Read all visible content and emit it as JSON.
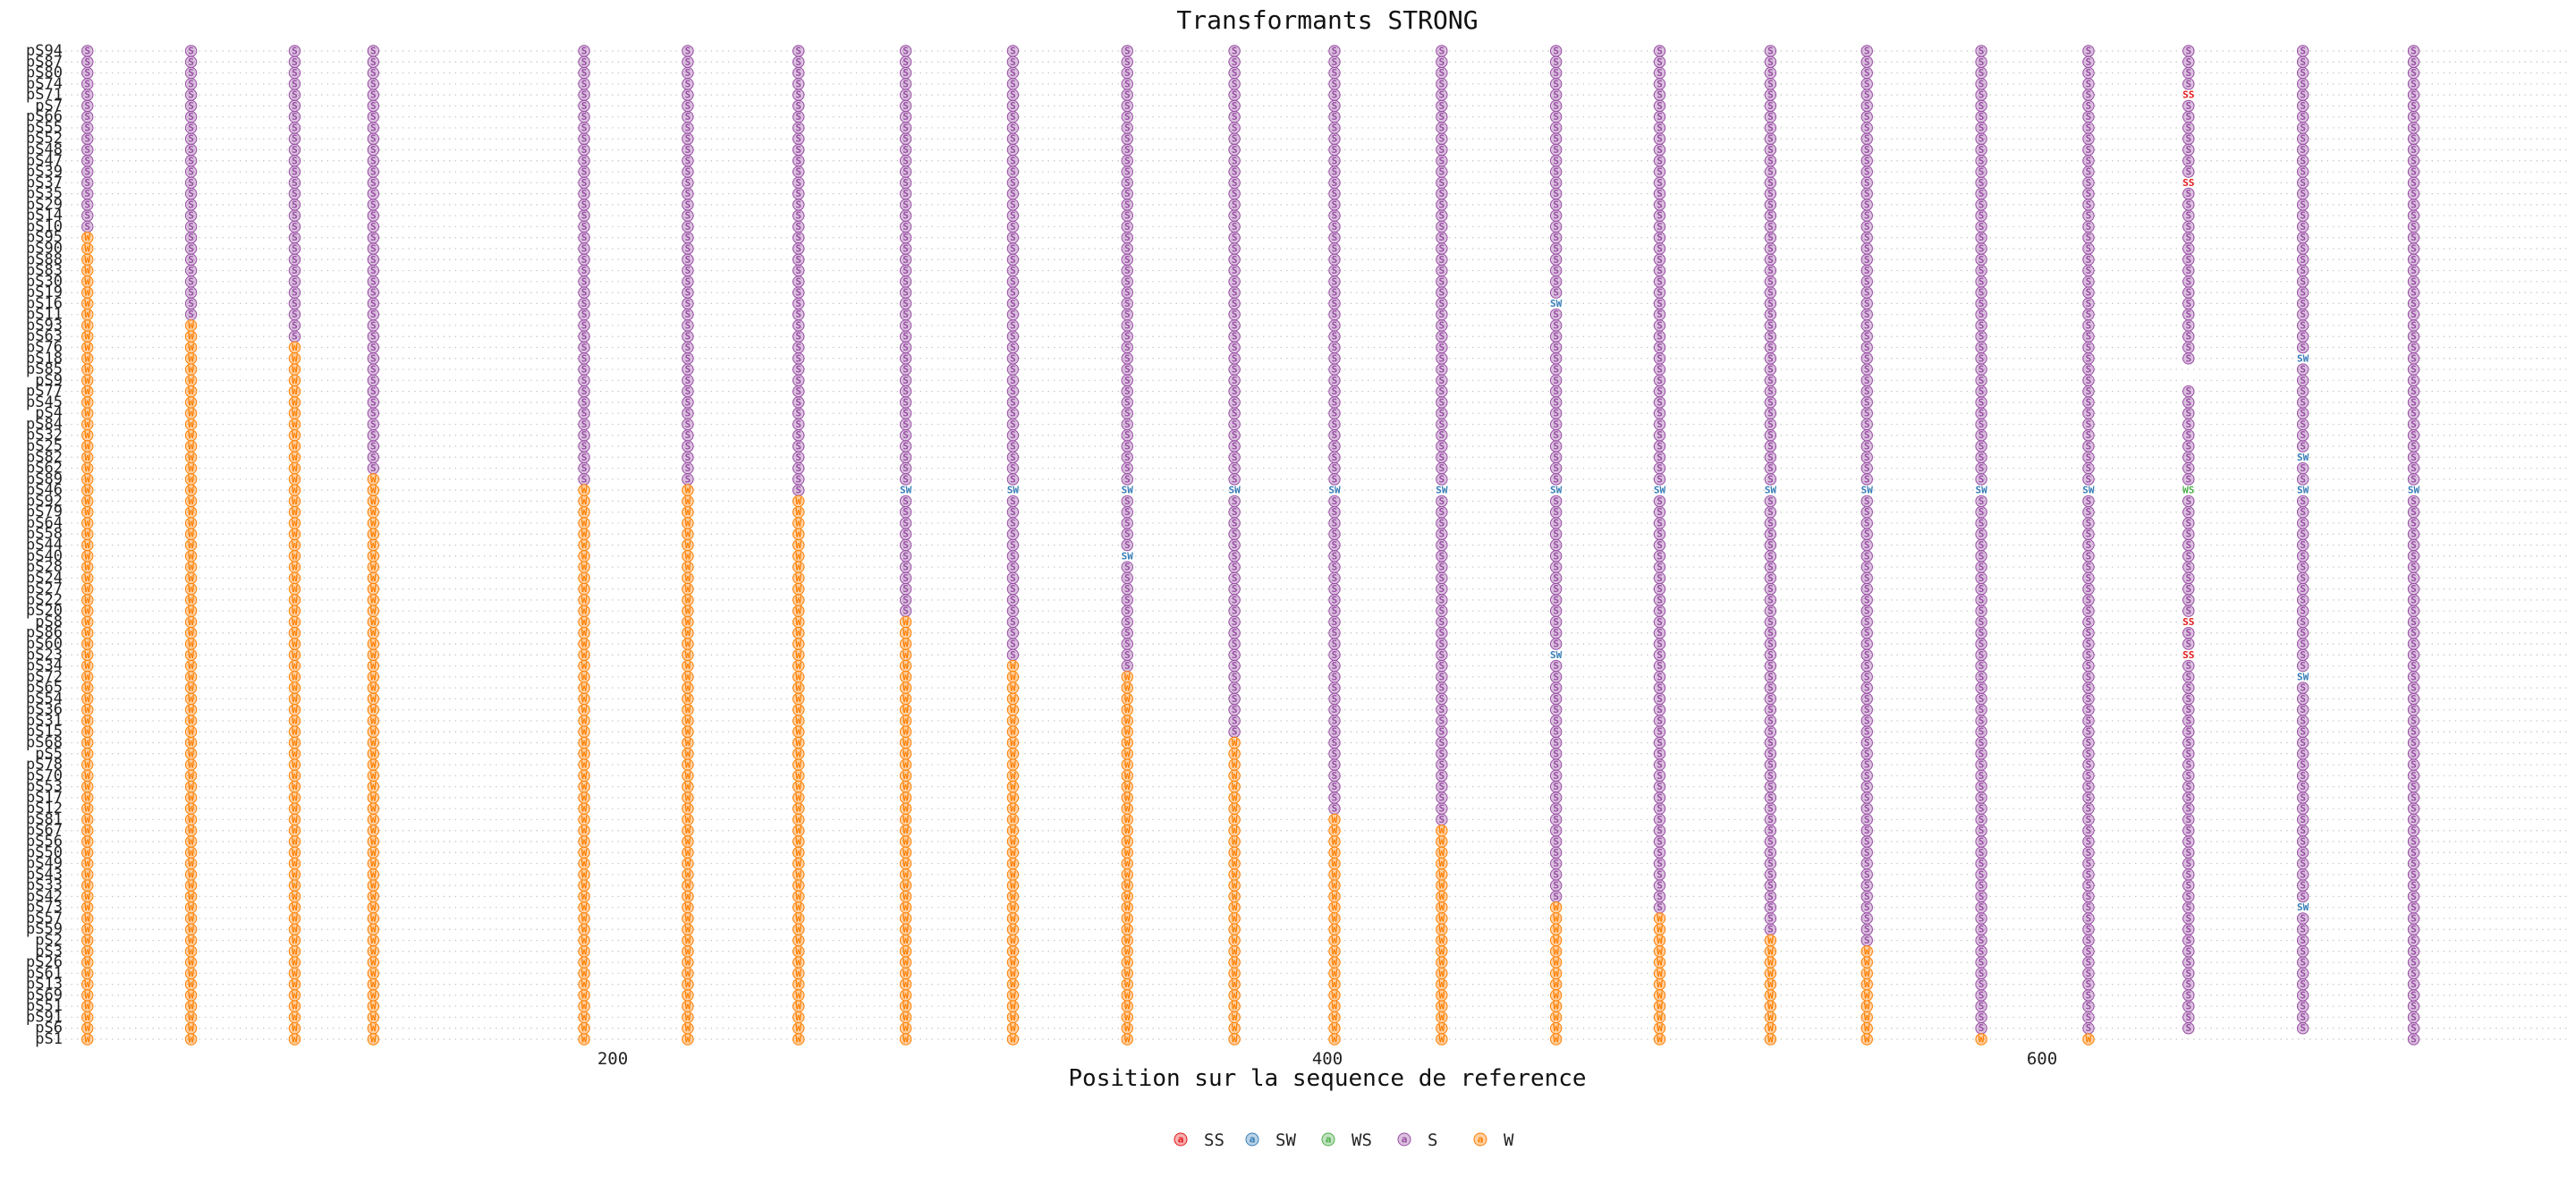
{
  "chart_data": {
    "type": "scatter",
    "title": "Transformants STRONG",
    "xlabel": "Position sur la sequence de reference",
    "ylabel": "",
    "x_ticks": [
      200,
      400,
      600
    ],
    "xlim": [
      45,
      770
    ],
    "positions": [
      53,
      82,
      111,
      133,
      192,
      221,
      252,
      282,
      312,
      344,
      374,
      402,
      432,
      464,
      493,
      524,
      551,
      583,
      613,
      641,
      673,
      704
    ],
    "categories": [
      "pS94",
      "pS87",
      "pS80",
      "pS74",
      "pS71",
      "pS7",
      "pS66",
      "pS55",
      "pS52",
      "pS48",
      "pS47",
      "pS39",
      "pS37",
      "pS35",
      "pS29",
      "pS14",
      "pS10",
      "pS95",
      "pS90",
      "pS88",
      "pS83",
      "pS30",
      "pS19",
      "pS16",
      "pS11",
      "pS93",
      "pS63",
      "pS76",
      "pS18",
      "pS85",
      "pS9",
      "pS77",
      "pS45",
      "pS4",
      "pS84",
      "pS32",
      "pS25",
      "pS82",
      "pS62",
      "pS89",
      "pS46",
      "pS92",
      "pS79",
      "pS64",
      "pS58",
      "pS44",
      "pS40",
      "pS28",
      "pS24",
      "pS27",
      "pS22",
      "pS20",
      "pS8",
      "pS86",
      "pS60",
      "pS23",
      "pS34",
      "pS72",
      "pS65",
      "pS54",
      "pS36",
      "pS31",
      "pS15",
      "pS68",
      "pS5",
      "pS78",
      "pS70",
      "pS53",
      "pS17",
      "pS12",
      "pS81",
      "pS67",
      "pS56",
      "pS50",
      "pS49",
      "pS43",
      "pS33",
      "pS42",
      "pS73",
      "pS57",
      "pS59",
      "pS2",
      "pS3",
      "pS26",
      "pS61",
      "pS13",
      "pS69",
      "pS51",
      "pS91",
      "pS6",
      "pS1"
    ],
    "w_counts": [
      0,
      0,
      0,
      0,
      0,
      0,
      0,
      0,
      0,
      0,
      0,
      0,
      0,
      0,
      0,
      0,
      0,
      1,
      1,
      1,
      1,
      1,
      1,
      1,
      1,
      2,
      2,
      3,
      3,
      3,
      3,
      3,
      3,
      3,
      3,
      3,
      3,
      3,
      3,
      4,
      6,
      7,
      7,
      7,
      7,
      7,
      7,
      7,
      7,
      7,
      7,
      7,
      8,
      8,
      8,
      8,
      9,
      10,
      10,
      10,
      10,
      10,
      10,
      11,
      11,
      11,
      11,
      11,
      11,
      11,
      12,
      13,
      13,
      13,
      13,
      13,
      13,
      13,
      14,
      15,
      15,
      16,
      17,
      17,
      17,
      17,
      17,
      17,
      17,
      17,
      20
    ],
    "non_s_marks": [
      {
        "seq": "pS71",
        "pos": 641,
        "type": "SS"
      },
      {
        "seq": "pS37",
        "pos": 641,
        "type": "SS"
      },
      {
        "seq": "pS16",
        "pos": 464,
        "type": "SW"
      },
      {
        "seq": "pS18",
        "pos": 673,
        "type": "SW"
      },
      {
        "seq": "pS82",
        "pos": 673,
        "type": "SW"
      },
      {
        "seq": "pS46",
        "pos": 282,
        "type": "SW"
      },
      {
        "seq": "pS46",
        "pos": 312,
        "type": "SW"
      },
      {
        "seq": "pS46",
        "pos": 344,
        "type": "SW"
      },
      {
        "seq": "pS46",
        "pos": 374,
        "type": "SW"
      },
      {
        "seq": "pS46",
        "pos": 402,
        "type": "SW"
      },
      {
        "seq": "pS46",
        "pos": 432,
        "type": "SW"
      },
      {
        "seq": "pS46",
        "pos": 464,
        "type": "SW"
      },
      {
        "seq": "pS46",
        "pos": 493,
        "type": "SW"
      },
      {
        "seq": "pS46",
        "pos": 524,
        "type": "SW"
      },
      {
        "seq": "pS46",
        "pos": 551,
        "type": "SW"
      },
      {
        "seq": "pS46",
        "pos": 583,
        "type": "SW"
      },
      {
        "seq": "pS46",
        "pos": 613,
        "type": "SW"
      },
      {
        "seq": "pS46",
        "pos": 641,
        "type": "WS"
      },
      {
        "seq": "pS46",
        "pos": 673,
        "type": "SW"
      },
      {
        "seq": "pS46",
        "pos": 704,
        "type": "SW"
      },
      {
        "seq": "pS40",
        "pos": 344,
        "type": "SW"
      },
      {
        "seq": "pS8",
        "pos": 641,
        "type": "SS"
      },
      {
        "seq": "pS23",
        "pos": 464,
        "type": "SW"
      },
      {
        "seq": "pS23",
        "pos": 641,
        "type": "SS"
      },
      {
        "seq": "pS72",
        "pos": 673,
        "type": "SW"
      },
      {
        "seq": "pS73",
        "pos": 673,
        "type": "SW"
      }
    ],
    "absent_marks": [
      {
        "seq": "pS85",
        "pos": 641
      },
      {
        "seq": "pS9",
        "pos": 641
      },
      {
        "seq": "pS1",
        "pos": 641
      },
      {
        "seq": "pS1",
        "pos": 673
      }
    ],
    "legend": [
      {
        "label": "SS",
        "color": "#e41a1c"
      },
      {
        "label": "SW",
        "color": "#377eb8"
      },
      {
        "label": "WS",
        "color": "#4daf4a"
      },
      {
        "label": "S",
        "color": "#984ea3"
      },
      {
        "label": "W",
        "color": "#ff7f00"
      }
    ],
    "legend_position": "bottom",
    "grid": true,
    "mark_letters": {
      "SS": "SS",
      "SW": "SW",
      "WS": "WS",
      "S": "S",
      "W": "W"
    },
    "legend_glyph": "a"
  }
}
